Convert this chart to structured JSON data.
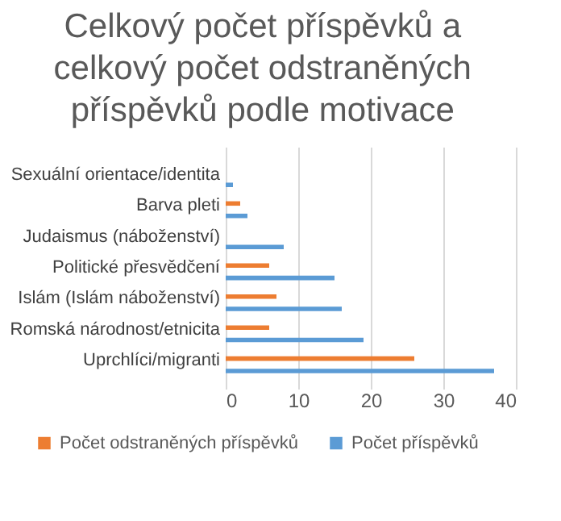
{
  "chart_data": {
    "type": "bar",
    "orientation": "horizontal",
    "title": "Celkový počet příspěvků a celkový počet odstraněných příspěvků podle motivace",
    "categories": [
      "Sexuální orientace/identita",
      "Barva pleti",
      "Judaismus (náboženství)",
      "Politické přesvědčení",
      "Islám (Islám náboženství)",
      "Romská národnost/etnicita",
      "Uprchlíci/migranti"
    ],
    "series": [
      {
        "name": "Počet odstraněných příspěvků",
        "color": "#ed7d31",
        "values": [
          0,
          2,
          0,
          6,
          7,
          6,
          26
        ]
      },
      {
        "name": "Počet příspěvků",
        "color": "#5b9bd5",
        "values": [
          1,
          3,
          8,
          15,
          16,
          19,
          37
        ]
      }
    ],
    "xlim": [
      0,
      40
    ],
    "xticks": [
      0,
      10,
      20,
      30,
      40
    ],
    "grid": "x",
    "legend": "bottom"
  }
}
